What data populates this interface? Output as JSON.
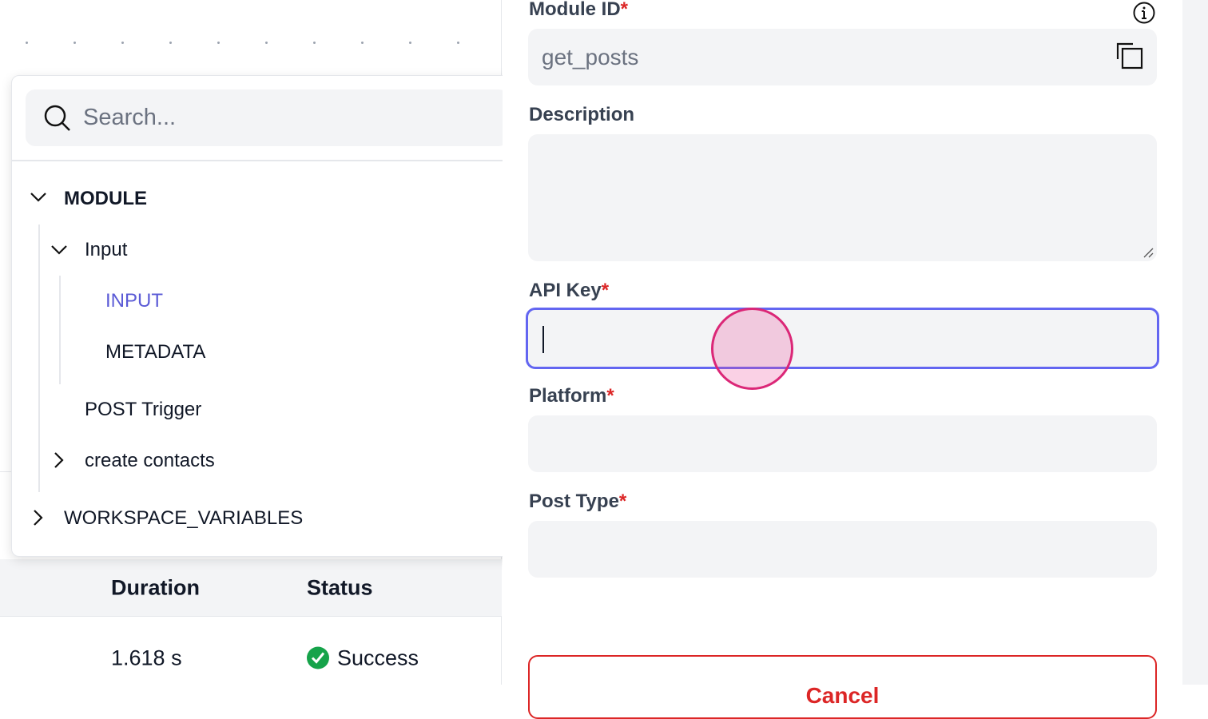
{
  "table": {
    "headers": [
      "Duration",
      "Status"
    ],
    "rows": [
      {
        "duration": "1.618 s",
        "status": "Success"
      }
    ]
  },
  "popup": {
    "search_placeholder": "Search...",
    "tree": {
      "module": "MODULE",
      "input": "Input",
      "input_child": "INPUT",
      "metadata": "METADATA",
      "post_trigger": "POST Trigger",
      "create_contacts": "create contacts",
      "workspace_variables": "WORKSPACE_VARIABLES"
    }
  },
  "form": {
    "module_id_label": "Module ID",
    "module_id_value": "get_posts",
    "description_label": "Description",
    "api_key_label": "API Key",
    "platform_label": "Platform",
    "post_type_label": "Post Type",
    "required_mark": "*",
    "cancel_label": "Cancel"
  },
  "colors": {
    "accent": "#6366f1",
    "selected_tree_item": "#5b5bd6",
    "required": "#dc2626",
    "success": "#16a34a"
  }
}
